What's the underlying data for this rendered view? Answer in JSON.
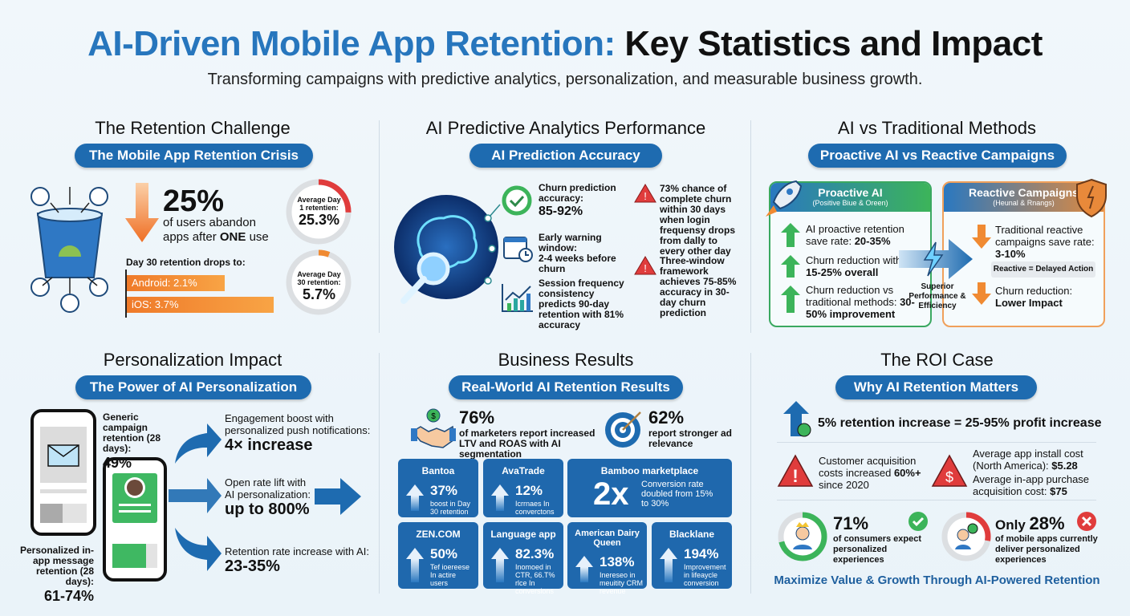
{
  "header": {
    "title_blue": "AI-Driven Mobile App Retention:",
    "title_rest": " Key Statistics and Impact",
    "subtitle": "Transforming campaigns with predictive analytics, personalization, and measurable business growth."
  },
  "colors": {
    "primary": "#1e6bb0",
    "accent_orange": "#f08a32",
    "green": "#3cb45a",
    "red": "#e03c3c"
  },
  "challenge": {
    "title": "The Retention Challenge",
    "pill": "The Mobile App Retention Crisis",
    "big": "25%",
    "desc1": "of users abandon",
    "desc2_pre": "apps after ",
    "desc2_bold": "ONE",
    "desc2_post": " use",
    "day30_label": "Day 30 retention drops to:",
    "android": "Android: 2.1%",
    "ios": "iOS: 3.7%",
    "android_value": 2.1,
    "ios_value": 3.7,
    "donut1": {
      "label1": "Average Day",
      "label2": "1 retentien:",
      "value": "25.3%",
      "fraction": 0.253
    },
    "donut2": {
      "label1": "Average Day",
      "label2": "30 retention:",
      "value": "5.7%",
      "fraction": 0.057
    }
  },
  "predictive": {
    "title": "AI Predictive Analytics Performance",
    "pill": "AI Prediction Accuracy",
    "items": [
      {
        "label": "Churn prediction accuracy:",
        "value": "85-92%"
      },
      {
        "label": "Early warning window:",
        "value": "2-4 weeks before churn"
      },
      {
        "label": "Session frequency consistency predicts 90-day retention with 81% accuracy"
      }
    ],
    "warnings": [
      "73% chance of complete churn within 30 days when login frequensy drops from dally to every other day",
      "Three-window framework achieves 75-85% accuracy in 30-day churn prediction"
    ]
  },
  "versus": {
    "title": "AI vs Traditional Methods",
    "pill": "Proactive AI vs Reactive Campaigns",
    "proactive": {
      "head": "Proactive AI",
      "sub": "(Positive Biue & Oreen)",
      "items": [
        {
          "pre": "AI proactive retention save rate: ",
          "bold": "20-35%"
        },
        {
          "pre": "Churn reduction with AI: ",
          "bold": "15-25% overall"
        },
        {
          "pre": "Churn reduction vs traditional methods: ",
          "bold": "30-50% improvement"
        }
      ]
    },
    "middle": "Superior Performance & Efficiency",
    "reactive": {
      "head": "Reactive Campaigns",
      "sub": "(Heunal & Rnangs)",
      "items": [
        {
          "pre": "Traditional reactive campaigns save rate: ",
          "bold": "3-10%"
        },
        {
          "pre": "Churn reduction: ",
          "bold": "Lower Impact"
        }
      ],
      "tag": "Reactive = Delayed Action"
    }
  },
  "personalization": {
    "title": "Personalization Impact",
    "pill": "The Power of AI Personalization",
    "generic_label": "Generic campaign retention (28 days):",
    "generic_value": "49%",
    "personal_label": "Personalized in-app message retention (28 days):",
    "personal_value": "61-74%",
    "stats": [
      {
        "label": "Engagement boost with personalized push notifications:",
        "value": "4× increase"
      },
      {
        "label": "Open rate lift with AI personalization:",
        "value": "up to 800%"
      },
      {
        "label": "Retention rate increase with AI:",
        "value": "23-35%"
      }
    ]
  },
  "business": {
    "title": "Business Results",
    "pill": "Real-World AI Retention Results",
    "stat1": {
      "value": "76%",
      "desc": "of marketers report increased LTV and ROAS with AI segmentation"
    },
    "stat2": {
      "value": "62%",
      "desc": "report stronger ad relevance"
    },
    "tiles": [
      {
        "name": "Bantoa",
        "value": "37%",
        "desc": "boost in Day 30 retention"
      },
      {
        "name": "AvaTrade",
        "value": "12%",
        "desc": "Icrrnaes In converctons"
      },
      {
        "name": "Bamboo marketplace",
        "value": "2x",
        "desc": "Conversion rate doubled from 15% to 30%"
      },
      {
        "name": "ZEN.COM",
        "value": "50%",
        "desc": "Tef ioereese In actire users"
      },
      {
        "name": "Language app",
        "value": "82.3%",
        "desc": "Inomoed in CTR, 66.T% rlce In conversions"
      },
      {
        "name": "American Dairy Queen",
        "value": "138%",
        "desc": "Inereseo in meuitity CRM revenue"
      },
      {
        "name": "Blacklane",
        "value": "194%",
        "desc": "Improvement in lifeaycle conversion"
      }
    ]
  },
  "roi": {
    "title": "The ROI Case",
    "pill": "Why AI Retention Matters",
    "headline": "5% retention increase = 25-95% profit increase",
    "cac": {
      "pre": "Customer acquisition costs increased ",
      "bold": "60%+",
      "post": " since 2020"
    },
    "install": {
      "pre": "Average app install cost (North America): ",
      "bold": "$5.28"
    },
    "iap": {
      "pre": "Average in-app purchase acquisition cost: ",
      "bold": "$75"
    },
    "expect": {
      "value": "71%",
      "desc": "of consumers expect personalized experiences",
      "fraction": 0.71
    },
    "deliver": {
      "pre": "Only ",
      "value": "28%",
      "desc": "of mobile apps currently deliver personalized experiences",
      "fraction": 0.28
    },
    "footer": "Maximize Value & Growth Through AI-Powered Retention"
  }
}
